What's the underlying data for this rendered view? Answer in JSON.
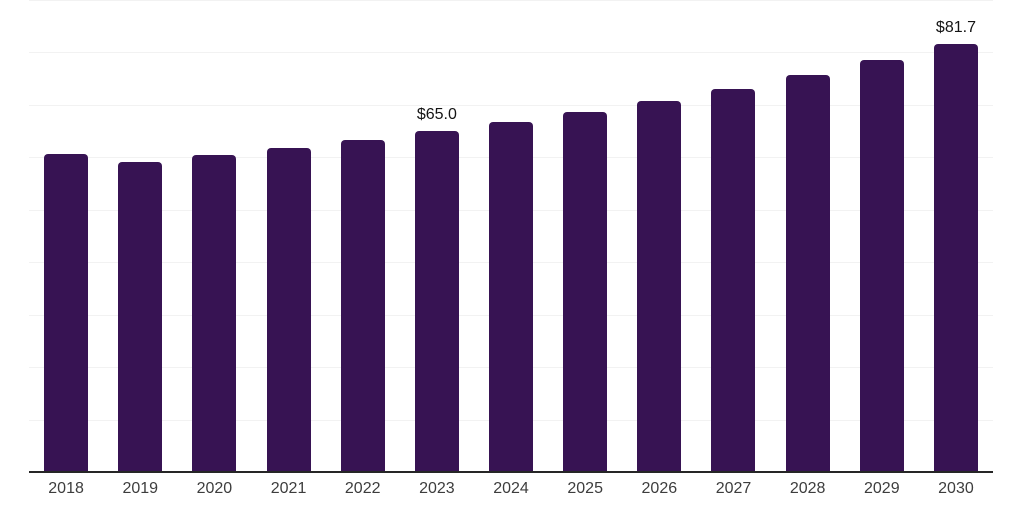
{
  "chart_data": {
    "type": "bar",
    "title": "",
    "xlabel": "",
    "ylabel": "",
    "categories": [
      "2018",
      "2019",
      "2020",
      "2021",
      "2022",
      "2023",
      "2024",
      "2025",
      "2026",
      "2027",
      "2028",
      "2029",
      "2030"
    ],
    "values": [
      60.7,
      59.2,
      60.5,
      61.7,
      63.3,
      65.0,
      66.7,
      68.6,
      70.7,
      73.0,
      75.8,
      78.5,
      81.7
    ],
    "data_labels": [
      {
        "index": 5,
        "text": "$65.0"
      },
      {
        "index": 12,
        "text": "$81.7"
      }
    ],
    "ylim": [
      0,
      90
    ],
    "gridline_step": 10,
    "grid": true,
    "legend": false,
    "colors": {
      "bar": "#371353",
      "axis": "#262626",
      "gridline": "#f2f2f2",
      "tick_label": "#3d3d3d",
      "data_label": "#141414",
      "background": "#ffffff"
    }
  }
}
